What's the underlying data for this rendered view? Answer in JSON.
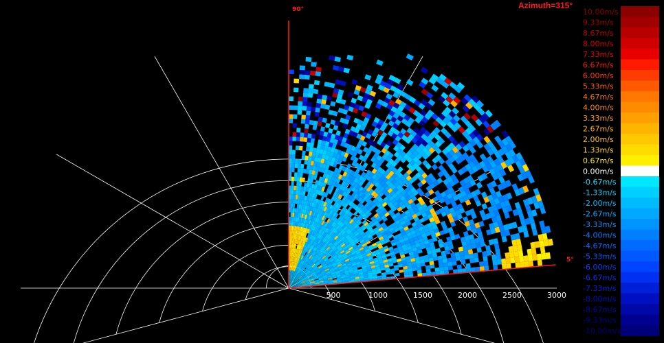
{
  "chart_data": {
    "type": "heatmap",
    "projection": "polar-sector",
    "title": "Azimuth=315°",
    "angle_labels": [
      "90°",
      "5°"
    ],
    "elevation_start_deg": 5,
    "elevation_end_deg": 90,
    "range_ticks": [
      "500",
      "1000",
      "1500",
      "2000",
      "2500",
      "3000"
    ],
    "range_max": 3000,
    "grid_ring_values": [
      500,
      1000,
      1500,
      2000,
      2500,
      3000
    ],
    "grid_spoke_angles_deg": [
      -15,
      0,
      30,
      60,
      90,
      120,
      150,
      180,
      195
    ],
    "grid": true,
    "legend_position": "right",
    "colorbar": {
      "labels": [
        "10.00m/s",
        "9.33m/s",
        "8.67m/s",
        "8.00m/s",
        "7.33m/s",
        "6.67m/s",
        "6.00m/s",
        "5.33m/s",
        "4.67m/s",
        "4.00m/s",
        "3.33m/s",
        "2.67m/s",
        "2.00m/s",
        "1.33m/s",
        "0.67m/s",
        "0.00m/s",
        "-0.67m/s",
        "-1.33m/s",
        "-2.00m/s",
        "-2.67m/s",
        "-3.33m/s",
        "-4.00m/s",
        "-4.67m/s",
        "-5.33m/s",
        "-6.00m/s",
        "-6.67m/s",
        "-7.33m/s",
        "-8.00m/s",
        "-8.67m/s",
        "-9.33m/s",
        "-10.00m/s"
      ],
      "colors": [
        "#8b0000",
        "#a00000",
        "#b80000",
        "#d00000",
        "#e80000",
        "#ff1a00",
        "#ff3c00",
        "#ff5a00",
        "#ff7800",
        "#ff8c00",
        "#ffa000",
        "#ffb400",
        "#ffc800",
        "#ffdc00",
        "#fff000",
        "#ffffff",
        "#00e8ff",
        "#00d0ff",
        "#00bcff",
        "#00a8ff",
        "#0094ff",
        "#0080ff",
        "#006cff",
        "#0058ff",
        "#0044ff",
        "#0030f0",
        "#0020d8",
        "#0010c0",
        "#0008a8",
        "#000090",
        "#000078"
      ]
    },
    "velocity_pattern": {
      "velocity_unit": "m/s",
      "regions": [
        {
          "range_from": 0,
          "range_to": 1200,
          "elevation_from": 5,
          "elevation_to": 90,
          "velocity": -2.0
        },
        {
          "range_from": 1200,
          "range_to": 1800,
          "elevation_from": 5,
          "elevation_to": 70,
          "velocity": -2.67
        },
        {
          "range_from": 1800,
          "range_to": 3000,
          "elevation_from": 5,
          "elevation_to": 40,
          "velocity": -3.33
        },
        {
          "range_from": 2400,
          "range_to": 3000,
          "elevation_from": 5,
          "elevation_to": 12,
          "velocity": 1.33
        },
        {
          "range_from": 200,
          "range_to": 700,
          "elevation_from": 70,
          "elevation_to": 90,
          "velocity": 1.33
        }
      ]
    }
  }
}
